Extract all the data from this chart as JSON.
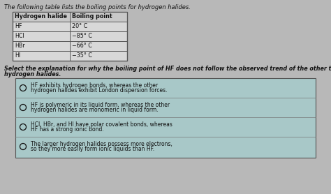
{
  "title": "The following table lists the boiling points for hydrogen halides.",
  "table_headers": [
    "Hydrogen halide",
    "Boiling point"
  ],
  "table_rows": [
    [
      "HF",
      "20° C"
    ],
    [
      "HCl",
      "−85° C"
    ],
    [
      "HBr",
      "−66° C"
    ],
    [
      "HI",
      "−35° C"
    ]
  ],
  "question_line1": "Select the explanation for why the boiling point of HF does not follow the observed trend of the other three",
  "question_line2": "hydrogen halides.",
  "options": [
    "HF exhibits hydrogen bonds, whereas the other\nhydrogen halides exhibit London dispersion forces.",
    "HF is polymeric in its liquid form, whereas the other\nhydrogen halides are monomeric in liquid form.",
    "HCl, HBr, and HI have polar covalent bonds, whereas\nHF has a strong ionic bond.",
    "The larger hydrogen halides possess more electrons,\nso they more easily form ionic liquids than HF."
  ],
  "bg_color": "#b8b8b8",
  "table_bg": "#d8d8d8",
  "header_bg": "#c8c8c8",
  "option_box_bg": "#a8c8c8",
  "border_color": "#555555",
  "text_color": "#111111"
}
